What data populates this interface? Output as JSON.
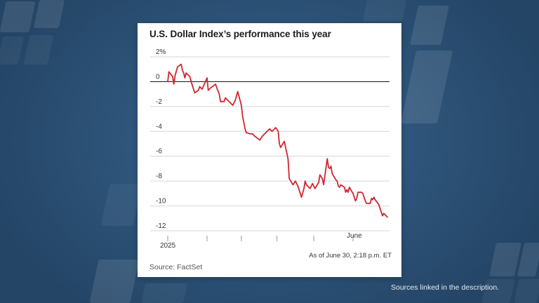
{
  "chart_data": {
    "type": "line",
    "title": "U.S. Dollar Index’s performance this year",
    "y_ticks": [
      "2%",
      "0",
      "-2",
      "-4",
      "-6",
      "-8",
      "-10",
      "-12"
    ],
    "ylim": [
      -12,
      2
    ],
    "x_tick_labels": [
      "2025",
      "June"
    ],
    "series": [
      {
        "color": "#d0262f",
        "points": [
          [
            "2025-01-02",
            0.0
          ],
          [
            "2025-01-03",
            0.8
          ],
          [
            "2025-01-06",
            0.4
          ],
          [
            "2025-01-07",
            -0.2
          ],
          [
            "2025-01-08",
            0.5
          ],
          [
            "2025-01-10",
            1.2
          ],
          [
            "2025-01-13",
            1.4
          ],
          [
            "2025-01-14",
            0.9
          ],
          [
            "2025-01-15",
            0.7
          ],
          [
            "2025-01-16",
            0.3
          ],
          [
            "2025-01-17",
            0.7
          ],
          [
            "2025-01-20",
            0.4
          ],
          [
            "2025-01-22",
            -0.3
          ],
          [
            "2025-01-24",
            -0.9
          ],
          [
            "2025-01-27",
            -0.7
          ],
          [
            "2025-01-28",
            -0.4
          ],
          [
            "2025-01-30",
            -0.6
          ],
          [
            "2025-02-03",
            0.3
          ],
          [
            "2025-02-04",
            -0.7
          ],
          [
            "2025-02-06",
            -0.5
          ],
          [
            "2025-02-10",
            -0.2
          ],
          [
            "2025-02-11",
            -0.5
          ],
          [
            "2025-02-13",
            -1.0
          ],
          [
            "2025-02-14",
            -1.6
          ],
          [
            "2025-02-17",
            -1.6
          ],
          [
            "2025-02-18",
            -1.3
          ],
          [
            "2025-02-21",
            -1.6
          ],
          [
            "2025-02-24",
            -1.9
          ],
          [
            "2025-02-26",
            -1.5
          ],
          [
            "2025-02-28",
            -0.8
          ],
          [
            "2025-03-03",
            -1.9
          ],
          [
            "2025-03-04",
            -2.8
          ],
          [
            "2025-03-06",
            -3.8
          ],
          [
            "2025-03-07",
            -4.1
          ],
          [
            "2025-03-10",
            -4.2
          ],
          [
            "2025-03-12",
            -4.2
          ],
          [
            "2025-03-14",
            -4.4
          ],
          [
            "2025-03-18",
            -4.7
          ],
          [
            "2025-03-20",
            -4.4
          ],
          [
            "2025-03-24",
            -4.0
          ],
          [
            "2025-03-26",
            -3.8
          ],
          [
            "2025-03-28",
            -4.0
          ],
          [
            "2025-03-31",
            -3.7
          ],
          [
            "2025-04-02",
            -4.0
          ],
          [
            "2025-04-03",
            -5.0
          ],
          [
            "2025-04-04",
            -5.3
          ],
          [
            "2025-04-07",
            -4.8
          ],
          [
            "2025-04-10",
            -6.2
          ],
          [
            "2025-04-11",
            -7.8
          ],
          [
            "2025-04-14",
            -8.3
          ],
          [
            "2025-04-16",
            -8.0
          ],
          [
            "2025-04-18",
            -8.4
          ],
          [
            "2025-04-21",
            -9.3
          ],
          [
            "2025-04-23",
            -8.6
          ],
          [
            "2025-04-24",
            -8.0
          ],
          [
            "2025-04-25",
            -8.3
          ],
          [
            "2025-04-28",
            -8.6
          ],
          [
            "2025-04-30",
            -8.2
          ],
          [
            "2025-05-02",
            -8.6
          ],
          [
            "2025-05-05",
            -8.1
          ],
          [
            "2025-05-06",
            -7.5
          ],
          [
            "2025-05-08",
            -7.8
          ],
          [
            "2025-05-09",
            -8.3
          ],
          [
            "2025-05-12",
            -6.2
          ],
          [
            "2025-05-13",
            -6.9
          ],
          [
            "2025-05-14",
            -7.0
          ],
          [
            "2025-05-15",
            -6.8
          ],
          [
            "2025-05-16",
            -7.4
          ],
          [
            "2025-05-19",
            -7.9
          ],
          [
            "2025-05-20",
            -8.0
          ],
          [
            "2025-05-21",
            -8.4
          ],
          [
            "2025-05-22",
            -8.5
          ],
          [
            "2025-05-23",
            -8.3
          ],
          [
            "2025-05-26",
            -8.5
          ],
          [
            "2025-05-27",
            -8.9
          ],
          [
            "2025-05-28",
            -8.7
          ],
          [
            "2025-05-29",
            -8.9
          ],
          [
            "2025-05-30",
            -8.5
          ],
          [
            "2025-06-02",
            -9.0
          ],
          [
            "2025-06-03",
            -9.3
          ],
          [
            "2025-06-04",
            -9.6
          ],
          [
            "2025-06-05",
            -9.4
          ],
          [
            "2025-06-06",
            -8.9
          ],
          [
            "2025-06-09",
            -8.9
          ],
          [
            "2025-06-10",
            -9.0
          ],
          [
            "2025-06-11",
            -9.3
          ],
          [
            "2025-06-12",
            -9.6
          ],
          [
            "2025-06-13",
            -9.8
          ],
          [
            "2025-06-16",
            -9.8
          ],
          [
            "2025-06-17",
            -9.4
          ],
          [
            "2025-06-18",
            -9.5
          ],
          [
            "2025-06-19",
            -9.3
          ],
          [
            "2025-06-20",
            -9.5
          ],
          [
            "2025-06-23",
            -9.9
          ],
          [
            "2025-06-24",
            -10.2
          ],
          [
            "2025-06-25",
            -10.5
          ],
          [
            "2025-06-26",
            -10.8
          ],
          [
            "2025-06-27",
            -10.6
          ],
          [
            "2025-06-30",
            -10.9
          ]
        ]
      }
    ],
    "zero_line": true,
    "grid": "horizontal",
    "as_of": "As of June 30, 2:18 p.m. ET",
    "source": "Source: FactSet"
  },
  "footnote": "Sources linked in the description."
}
